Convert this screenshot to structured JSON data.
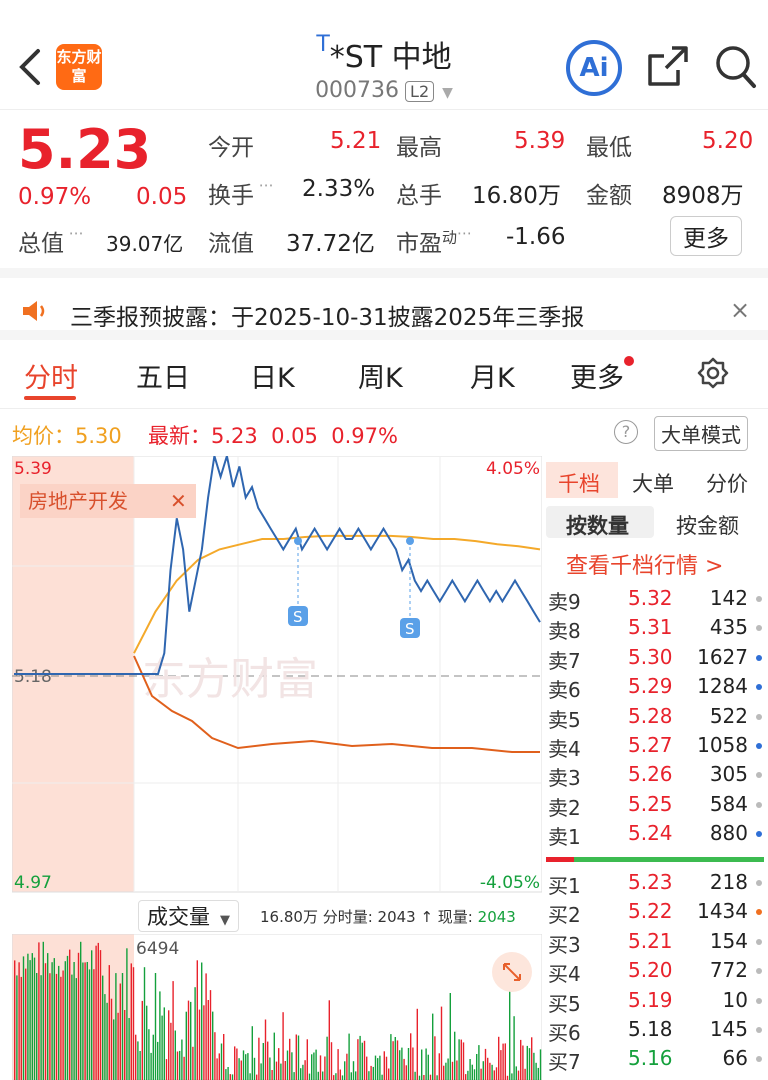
{
  "header": {
    "logo_text": "东方财富",
    "t_mark": "T",
    "stock_name": "*ST 中地",
    "code": "000736",
    "level": "L2",
    "ai_label": "Ai"
  },
  "quote": {
    "price": "5.23",
    "change_pct": "0.97%",
    "change_amt": "0.05",
    "open_label": "今开",
    "open": "5.21",
    "high_label": "最高",
    "high": "5.39",
    "low_label": "最低",
    "low": "5.20",
    "turnover_label": "换手",
    "turnover": "2.33%",
    "volume_label": "总手",
    "volume": "16.80万",
    "amount_label": "金额",
    "amount": "8908万",
    "mktcap_label": "总值",
    "mktcap": "39.07亿",
    "float_label": "流值",
    "float": "37.72亿",
    "pe_label": "市盈",
    "pe_sup": "动",
    "pe": "-1.66",
    "more_label": "更多"
  },
  "notice": {
    "text": "三季报预披露：于2025-10-31披露2025年三季报",
    "close": "×"
  },
  "tabs": [
    "分时",
    "五日",
    "日K",
    "周K",
    "月K",
    "更多"
  ],
  "status": {
    "avg_label": "均价：",
    "avg": "5.30",
    "latest_label": "最新：",
    "latest": "5.23",
    "chg": "0.05",
    "pct": "0.97%",
    "help": "?",
    "big_order_mode": "大单模式"
  },
  "chart": {
    "y_top": "5.39",
    "y_mid": "5.18",
    "y_bot": "4.97",
    "pct_top": "4.05%",
    "pct_bot": "-4.05%",
    "sector_tag": "房地产开发",
    "watermark": "东方财富",
    "vol_selector": "成交量",
    "vol_info": "16.80万 分时量: 2043 ↑ 现量:",
    "vol_now": "2043",
    "vol_max": "6494",
    "s_marker": "S"
  },
  "chart_data": {
    "type": "line",
    "title": "",
    "ylim": [
      4.97,
      5.39
    ],
    "prev_close": 5.18,
    "series": [
      {
        "name": "最新",
        "values": [
          5.18,
          5.18,
          5.18,
          5.18,
          5.18,
          5.18,
          5.18,
          5.18,
          5.18,
          5.18,
          5.18,
          5.18,
          5.18,
          5.18,
          5.18,
          5.18,
          5.18,
          5.18,
          5.18,
          5.18,
          5.18,
          5.18,
          5.18,
          5.18,
          5.2,
          5.28,
          5.33,
          5.3,
          5.24,
          5.27,
          5.3,
          5.35,
          5.39,
          5.37,
          5.39,
          5.36,
          5.38,
          5.35,
          5.36,
          5.34,
          5.33,
          5.32,
          5.31,
          5.3,
          5.31,
          5.32,
          5.3,
          5.31,
          5.32,
          5.31,
          5.3,
          5.31,
          5.32,
          5.31,
          5.31,
          5.32,
          5.31,
          5.3,
          5.31,
          5.32,
          5.31,
          5.3,
          5.28,
          5.29,
          5.27,
          5.26,
          5.27,
          5.26,
          5.25,
          5.26,
          5.27,
          5.26,
          5.25,
          5.26,
          5.27,
          5.26,
          5.25,
          5.26,
          5.25,
          5.26,
          5.27,
          5.26,
          5.25,
          5.24,
          5.23
        ]
      },
      {
        "name": "均价",
        "values": [
          5.2,
          5.24,
          5.27,
          5.29,
          5.3,
          5.305,
          5.31,
          5.31,
          5.312,
          5.313,
          5.313,
          5.313,
          5.313,
          5.312,
          5.31,
          5.31,
          5.308,
          5.305,
          5.303,
          5.3
        ]
      }
    ]
  },
  "order_tabs": {
    "qiandang": "千档",
    "dadan": "大单",
    "fenjia": "分价",
    "by_qty": "按数量",
    "by_amt": "按金额",
    "view": "查看千档行情 >"
  },
  "asks": [
    {
      "label": "卖9",
      "price": "5.32",
      "vol": "142",
      "dot": "#bbbbbb"
    },
    {
      "label": "卖8",
      "price": "5.31",
      "vol": "435",
      "dot": "#bbbbbb"
    },
    {
      "label": "卖7",
      "price": "5.30",
      "vol": "1627",
      "dot": "#2f6fd6"
    },
    {
      "label": "卖6",
      "price": "5.29",
      "vol": "1284",
      "dot": "#2f6fd6"
    },
    {
      "label": "卖5",
      "price": "5.28",
      "vol": "522",
      "dot": "#bbbbbb"
    },
    {
      "label": "卖4",
      "price": "5.27",
      "vol": "1058",
      "dot": "#2f6fd6"
    },
    {
      "label": "卖3",
      "price": "5.26",
      "vol": "305",
      "dot": "#bbbbbb"
    },
    {
      "label": "卖2",
      "price": "5.25",
      "vol": "584",
      "dot": "#bbbbbb"
    },
    {
      "label": "卖1",
      "price": "5.24",
      "vol": "880",
      "dot": "#2f6fd6"
    }
  ],
  "bids": [
    {
      "label": "买1",
      "price": "5.23",
      "vol": "218",
      "dot": "#bbbbbb",
      "color": "#e8222c"
    },
    {
      "label": "买2",
      "price": "5.22",
      "vol": "1434",
      "dot": "#f07020",
      "color": "#e8222c"
    },
    {
      "label": "买3",
      "price": "5.21",
      "vol": "154",
      "dot": "#bbbbbb",
      "color": "#e8222c"
    },
    {
      "label": "买4",
      "price": "5.20",
      "vol": "772",
      "dot": "#bbbbbb",
      "color": "#e8222c"
    },
    {
      "label": "买5",
      "price": "5.19",
      "vol": "10",
      "dot": "#bbbbbb",
      "color": "#e8222c"
    },
    {
      "label": "买6",
      "price": "5.18",
      "vol": "145",
      "dot": "#bbbbbb",
      "color": "#222222"
    },
    {
      "label": "买7",
      "price": "5.16",
      "vol": "66",
      "dot": "#bbbbbb",
      "color": "#14a03c"
    }
  ]
}
